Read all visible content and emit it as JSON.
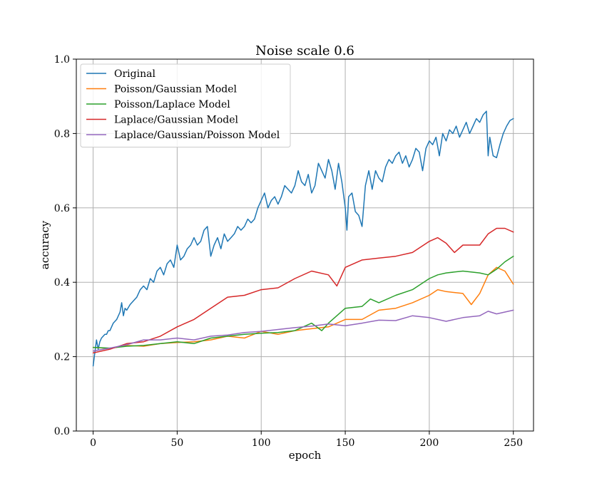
{
  "chart_data": {
    "type": "line",
    "title": "Noise scale 0.6",
    "xlabel": "epoch",
    "ylabel": "accuracy",
    "xlim": [
      -10,
      262
    ],
    "ylim": [
      0.0,
      1.0
    ],
    "xticks": [
      0,
      50,
      100,
      150,
      200,
      250
    ],
    "yticks": [
      0.0,
      0.2,
      0.4,
      0.6,
      0.8,
      1.0
    ],
    "xtick_labels": [
      "0",
      "50",
      "100",
      "150",
      "200",
      "250"
    ],
    "ytick_labels": [
      "0.0",
      "0.2",
      "0.4",
      "0.6",
      "0.8",
      "1.0"
    ],
    "grid": true,
    "legend_position": "top-left",
    "series": [
      {
        "name": "Original",
        "color": "#1f77b4",
        "x": [
          0,
          1,
          2,
          3,
          4,
          5,
          6,
          7,
          8,
          9,
          10,
          12,
          14,
          16,
          17,
          18,
          19,
          20,
          22,
          24,
          26,
          28,
          30,
          32,
          34,
          36,
          38,
          40,
          42,
          44,
          46,
          48,
          50,
          52,
          54,
          56,
          58,
          60,
          62,
          64,
          66,
          68,
          70,
          72,
          74,
          76,
          78,
          80,
          82,
          84,
          86,
          88,
          90,
          92,
          94,
          96,
          98,
          100,
          102,
          104,
          106,
          108,
          110,
          112,
          114,
          116,
          118,
          120,
          122,
          124,
          126,
          128,
          130,
          132,
          134,
          136,
          138,
          140,
          142,
          144,
          146,
          148,
          150,
          151,
          152,
          154,
          156,
          158,
          160,
          162,
          164,
          166,
          168,
          170,
          172,
          174,
          176,
          178,
          180,
          182,
          184,
          186,
          188,
          190,
          192,
          194,
          196,
          198,
          200,
          202,
          204,
          206,
          208,
          210,
          212,
          214,
          216,
          218,
          220,
          222,
          224,
          226,
          228,
          230,
          232,
          234,
          235,
          236,
          238,
          240,
          242,
          244,
          246,
          248,
          250
        ],
        "values": [
          0.175,
          0.21,
          0.245,
          0.22,
          0.24,
          0.25,
          0.255,
          0.26,
          0.26,
          0.27,
          0.27,
          0.29,
          0.3,
          0.32,
          0.345,
          0.31,
          0.33,
          0.325,
          0.34,
          0.35,
          0.36,
          0.38,
          0.39,
          0.38,
          0.41,
          0.4,
          0.43,
          0.44,
          0.42,
          0.45,
          0.46,
          0.44,
          0.5,
          0.46,
          0.47,
          0.49,
          0.5,
          0.52,
          0.5,
          0.51,
          0.54,
          0.55,
          0.47,
          0.5,
          0.52,
          0.49,
          0.53,
          0.51,
          0.52,
          0.53,
          0.55,
          0.54,
          0.55,
          0.57,
          0.56,
          0.57,
          0.6,
          0.62,
          0.64,
          0.6,
          0.62,
          0.63,
          0.61,
          0.63,
          0.66,
          0.65,
          0.64,
          0.66,
          0.7,
          0.67,
          0.66,
          0.69,
          0.64,
          0.66,
          0.72,
          0.7,
          0.68,
          0.73,
          0.7,
          0.65,
          0.72,
          0.67,
          0.6,
          0.54,
          0.63,
          0.64,
          0.59,
          0.58,
          0.55,
          0.66,
          0.7,
          0.65,
          0.7,
          0.68,
          0.67,
          0.71,
          0.73,
          0.72,
          0.74,
          0.75,
          0.72,
          0.74,
          0.71,
          0.73,
          0.76,
          0.75,
          0.7,
          0.76,
          0.78,
          0.77,
          0.79,
          0.74,
          0.8,
          0.78,
          0.81,
          0.8,
          0.82,
          0.79,
          0.81,
          0.83,
          0.8,
          0.82,
          0.84,
          0.83,
          0.85,
          0.86,
          0.74,
          0.79,
          0.74,
          0.735,
          0.77,
          0.8,
          0.82,
          0.835,
          0.84
        ]
      },
      {
        "name": "Poisson/Gaussian Model",
        "color": "#ff7f0e",
        "x": [
          0,
          10,
          20,
          30,
          40,
          50,
          60,
          70,
          80,
          90,
          100,
          110,
          120,
          130,
          140,
          150,
          160,
          170,
          180,
          190,
          200,
          205,
          210,
          220,
          225,
          230,
          235,
          240,
          245,
          250
        ],
        "values": [
          0.225,
          0.222,
          0.23,
          0.228,
          0.235,
          0.238,
          0.24,
          0.245,
          0.255,
          0.25,
          0.268,
          0.26,
          0.27,
          0.275,
          0.28,
          0.3,
          0.3,
          0.325,
          0.33,
          0.345,
          0.365,
          0.38,
          0.375,
          0.37,
          0.34,
          0.37,
          0.42,
          0.44,
          0.43,
          0.395
        ]
      },
      {
        "name": "Poisson/Laplace Model",
        "color": "#2ca02c",
        "x": [
          0,
          10,
          20,
          30,
          40,
          50,
          60,
          70,
          80,
          90,
          100,
          110,
          120,
          130,
          136,
          140,
          150,
          160,
          165,
          170,
          180,
          190,
          200,
          205,
          210,
          220,
          230,
          235,
          240,
          245,
          250
        ],
        "values": [
          0.225,
          0.223,
          0.228,
          0.23,
          0.235,
          0.24,
          0.235,
          0.25,
          0.255,
          0.26,
          0.263,
          0.265,
          0.27,
          0.29,
          0.27,
          0.29,
          0.33,
          0.335,
          0.355,
          0.345,
          0.365,
          0.38,
          0.41,
          0.42,
          0.425,
          0.43,
          0.425,
          0.42,
          0.435,
          0.455,
          0.47
        ]
      },
      {
        "name": "Laplace/Gaussian Model",
        "color": "#d62728",
        "x": [
          0,
          10,
          20,
          30,
          40,
          50,
          60,
          70,
          80,
          90,
          100,
          110,
          120,
          130,
          140,
          145,
          150,
          160,
          170,
          180,
          190,
          200,
          205,
          210,
          215,
          220,
          230,
          235,
          240,
          245,
          250
        ],
        "values": [
          0.21,
          0.22,
          0.235,
          0.24,
          0.255,
          0.28,
          0.3,
          0.33,
          0.36,
          0.365,
          0.38,
          0.385,
          0.41,
          0.43,
          0.42,
          0.39,
          0.44,
          0.46,
          0.465,
          0.47,
          0.48,
          0.51,
          0.52,
          0.505,
          0.48,
          0.5,
          0.5,
          0.53,
          0.545,
          0.545,
          0.535
        ]
      },
      {
        "name": "Laplace/Gaussian/Poisson Model",
        "color": "#9467bd",
        "x": [
          0,
          10,
          20,
          30,
          40,
          50,
          60,
          70,
          80,
          90,
          100,
          110,
          120,
          130,
          140,
          150,
          160,
          170,
          180,
          190,
          200,
          210,
          220,
          230,
          235,
          240,
          245,
          250
        ],
        "values": [
          0.215,
          0.223,
          0.232,
          0.245,
          0.245,
          0.25,
          0.245,
          0.255,
          0.258,
          0.265,
          0.268,
          0.273,
          0.278,
          0.282,
          0.288,
          0.283,
          0.29,
          0.298,
          0.297,
          0.31,
          0.305,
          0.295,
          0.305,
          0.31,
          0.322,
          0.315,
          0.32,
          0.325
        ]
      }
    ]
  }
}
